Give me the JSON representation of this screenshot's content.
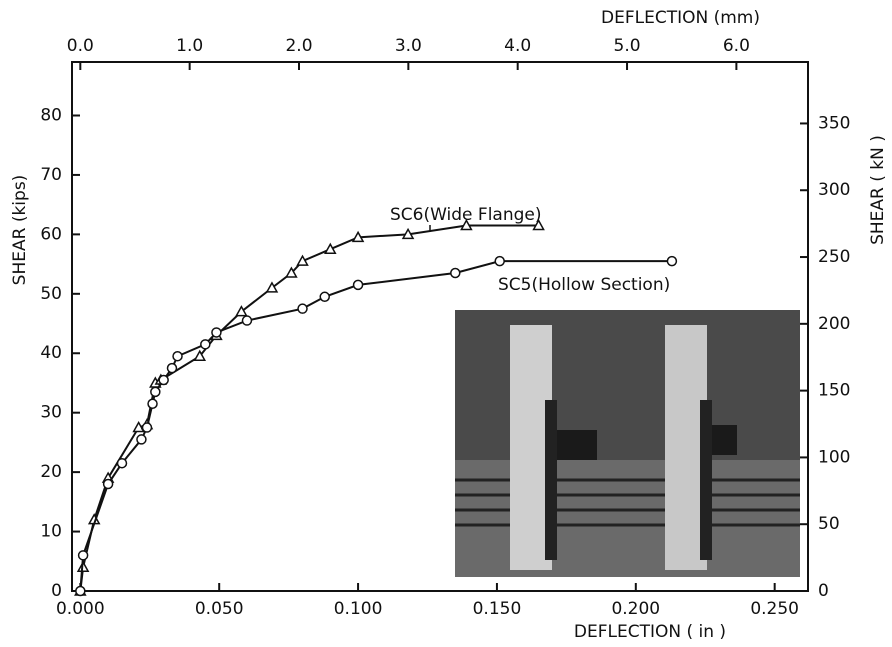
{
  "chart_data": {
    "type": "line",
    "x_label": "DEFLECTION ( in )",
    "x2_label": "DEFLECTION (mm)",
    "y_label": "SHEAR (kips)",
    "y2_label": "SHEAR ( kN )",
    "xlim": [
      -0.003,
      0.262
    ],
    "xticks": [
      {
        "value": 0,
        "label": "0.000"
      },
      {
        "value": 0.05,
        "label": "0.050"
      },
      {
        "value": 0.1,
        "label": "0.100"
      },
      {
        "value": 0.15,
        "label": "0.150"
      },
      {
        "value": 0.2,
        "label": "0.200"
      },
      {
        "value": 0.25,
        "label": "0.250"
      }
    ],
    "x2lim": [
      -0.076,
      6.655
    ],
    "x2ticks": [
      {
        "value": 0,
        "label": "0.0"
      },
      {
        "value": 1,
        "label": "1.0"
      },
      {
        "value": 2,
        "label": "2.0"
      },
      {
        "value": 3,
        "label": "3.0"
      },
      {
        "value": 4,
        "label": "4.0"
      },
      {
        "value": 5,
        "label": "5.0"
      },
      {
        "value": 6,
        "label": "6.0"
      }
    ],
    "ylim": [
      0,
      89
    ],
    "yticks": [
      0,
      10,
      20,
      30,
      40,
      50,
      60,
      70,
      80
    ],
    "y2lim": [
      0,
      396
    ],
    "y2ticks": [
      0,
      50,
      100,
      150,
      200,
      250,
      300,
      350
    ],
    "series": [
      {
        "name": "SC6(Wide Flange)",
        "color": "#111111",
        "marker": "triangle",
        "x": [
          0,
          0.001,
          0.005,
          0.01,
          0.021,
          0.024,
          0.027,
          0.029,
          0.043,
          0.049,
          0.058,
          0.069,
          0.076,
          0.08,
          0.09,
          0.1,
          0.118,
          0.139,
          0.165
        ],
        "values": [
          0,
          4,
          12,
          19,
          27.5,
          28,
          35,
          35.5,
          39.5,
          43,
          47,
          51,
          53.5,
          55.5,
          57.5,
          59.5,
          60,
          61.5,
          61.5
        ]
      },
      {
        "name": "SC5(Hollow Section)",
        "color": "#111111",
        "marker": "circle",
        "x": [
          0,
          0.001,
          0.01,
          0.015,
          0.022,
          0.024,
          0.026,
          0.027,
          0.03,
          0.033,
          0.035,
          0.045,
          0.049,
          0.06,
          0.08,
          0.088,
          0.1,
          0.135,
          0.151,
          0.213
        ],
        "values": [
          0,
          6,
          18,
          21.5,
          25.5,
          27.5,
          31.5,
          33.5,
          35.5,
          37.5,
          39.5,
          41.5,
          43.5,
          45.5,
          47.5,
          49.5,
          51.5,
          53.5,
          55.5,
          55.5
        ]
      }
    ]
  }
}
